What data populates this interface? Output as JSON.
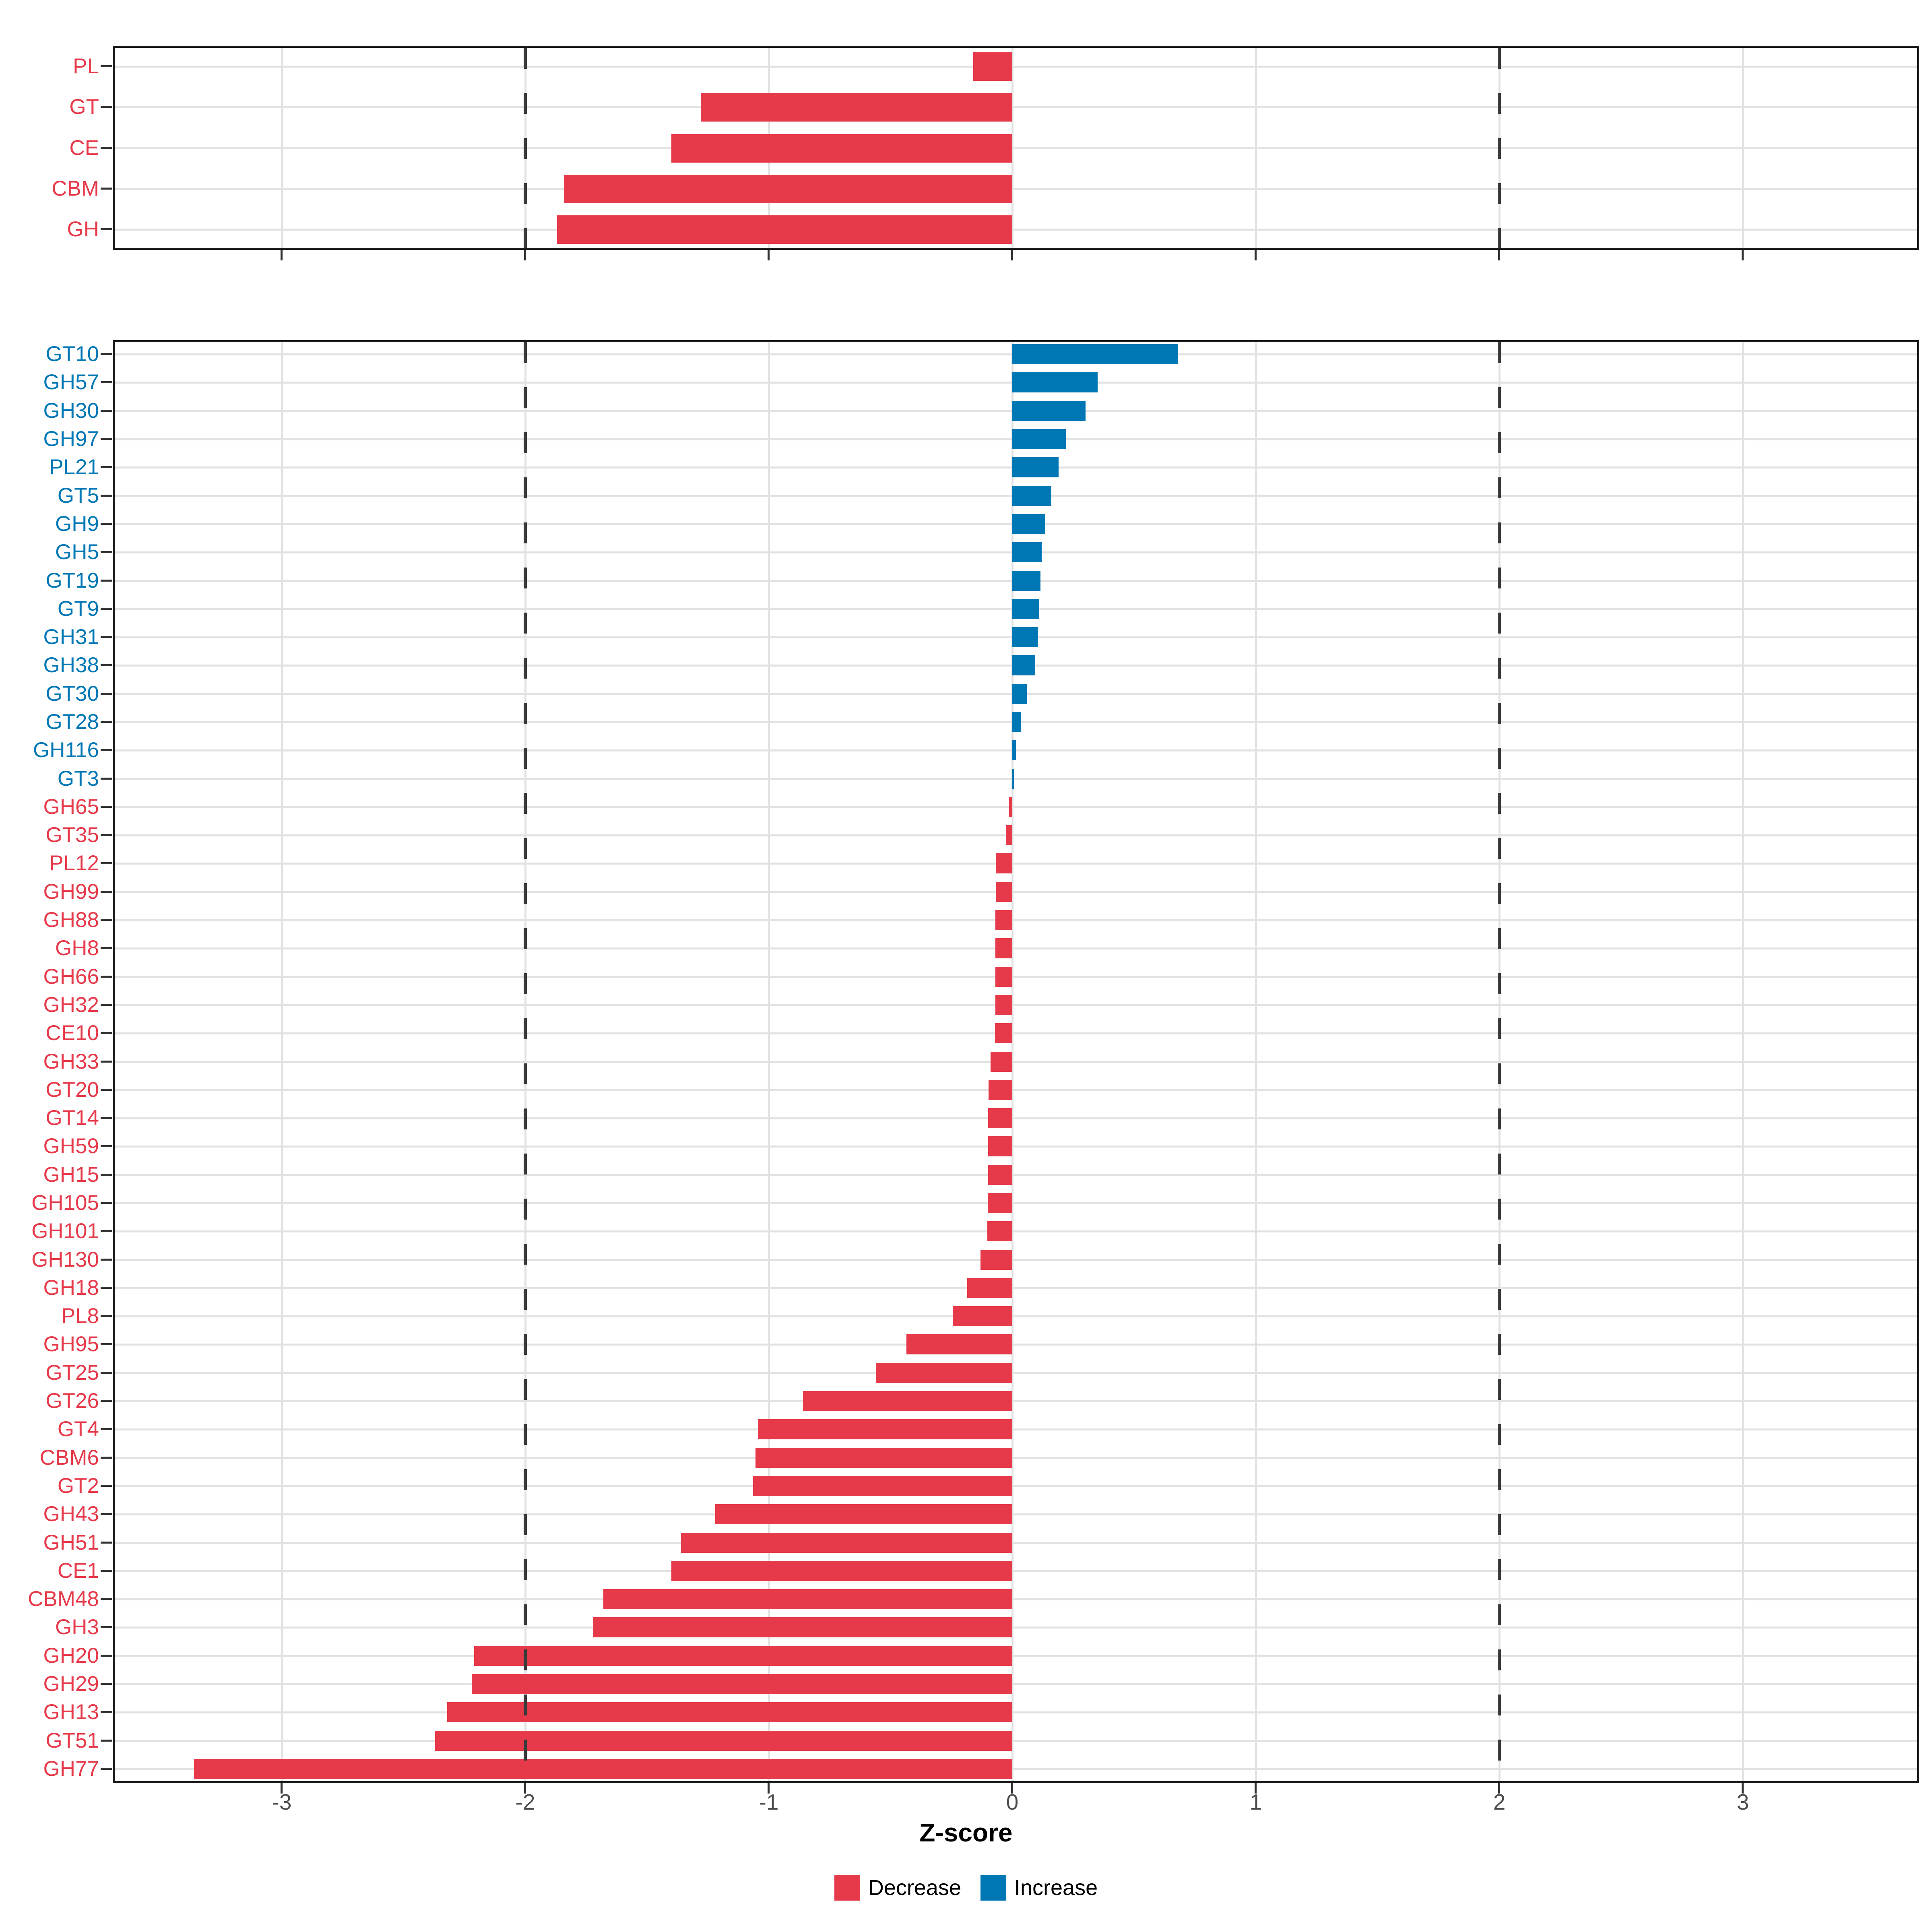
{
  "axis": {
    "label": "Z-score",
    "tick_values": [
      -3,
      -2,
      -1,
      0,
      1,
      2,
      3
    ],
    "tick_labels": [
      "-3",
      "-2",
      "-1",
      "0",
      "1",
      "2",
      "3"
    ],
    "dashed_reference_lines": [
      -2,
      2
    ],
    "xlim": [
      -3.7,
      3.73
    ]
  },
  "colors": {
    "decrease": "#e6394a",
    "increase": "#0077b5",
    "grid": "#e2e2e2",
    "panel_border": "#1a1a1a",
    "tick": "#333333",
    "tick_label": "#4d4d4d",
    "dashed_line": "#3a3a3a",
    "background": "#ffffff"
  },
  "legend": {
    "items": [
      {
        "label": "Decrease",
        "color_key": "decrease"
      },
      {
        "label": "Increase",
        "color_key": "increase"
      }
    ]
  },
  "chart_data": [
    {
      "type": "bar",
      "panel": "top",
      "orientation": "horizontal",
      "xlabel": "Z-score",
      "xlim": [
        -3.7,
        3.73
      ],
      "grid": true,
      "categories": [
        "PL",
        "GT",
        "CE",
        "CBM",
        "GH"
      ],
      "values": [
        -0.16,
        -1.28,
        -1.4,
        -1.84,
        -1.87
      ]
    },
    {
      "type": "bar",
      "panel": "bottom",
      "orientation": "horizontal",
      "xlabel": "Z-score",
      "xlim": [
        -3.7,
        3.73
      ],
      "grid": true,
      "legend_position": "bottom",
      "categories": [
        "GT10",
        "GH57",
        "GH30",
        "GH97",
        "PL21",
        "GT5",
        "GH9",
        "GH5",
        "GT19",
        "GT9",
        "GH31",
        "GH38",
        "GT30",
        "GT28",
        "GH116",
        "GT3",
        "GH65",
        "GT35",
        "PL12",
        "GH99",
        "GH88",
        "GH8",
        "GH66",
        "GH32",
        "CE10",
        "GH33",
        "GT20",
        "GT14",
        "GH59",
        "GH15",
        "GH105",
        "GH101",
        "GH130",
        "GH18",
        "PL8",
        "GH95",
        "GT25",
        "GT26",
        "GT4",
        "CBM6",
        "GT2",
        "GH43",
        "GH51",
        "CE1",
        "CBM48",
        "GH3",
        "GH20",
        "GH29",
        "GH13",
        "GT51",
        "GH77"
      ],
      "values": [
        0.68,
        0.35,
        0.3,
        0.22,
        0.19,
        0.16,
        0.135,
        0.12,
        0.115,
        0.11,
        0.105,
        0.095,
        0.06,
        0.034,
        0.015,
        0.007,
        -0.013,
        -0.027,
        -0.068,
        -0.068,
        -0.069,
        -0.069,
        -0.07,
        -0.07,
        -0.071,
        -0.089,
        -0.098,
        -0.099,
        -0.1,
        -0.1,
        -0.101,
        -0.102,
        -0.131,
        -0.185,
        -0.245,
        -0.435,
        -0.56,
        -0.86,
        -1.045,
        -1.055,
        -1.065,
        -1.22,
        -1.36,
        -1.4,
        -1.68,
        -1.72,
        -2.21,
        -2.22,
        -2.32,
        -2.37,
        -3.36
      ]
    }
  ]
}
